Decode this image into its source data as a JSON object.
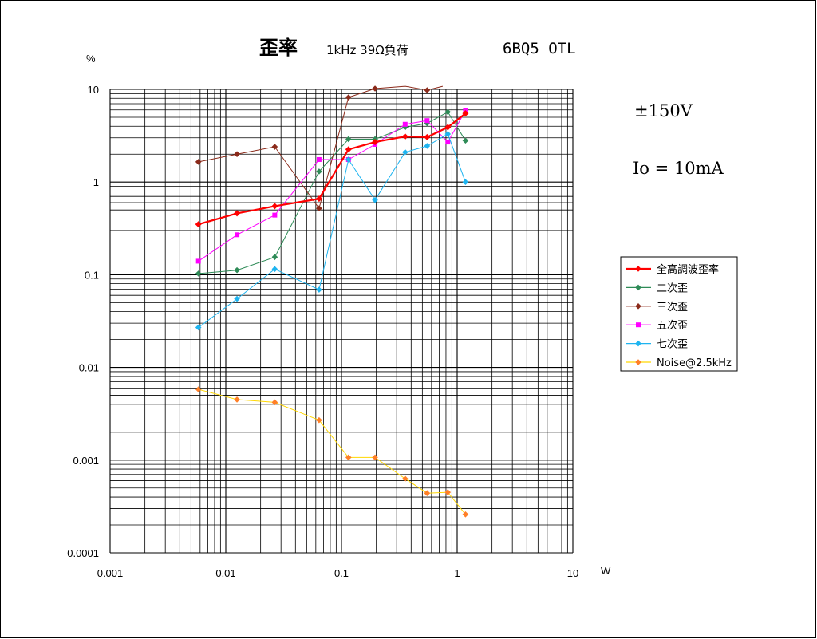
{
  "chart_data": {
    "type": "line",
    "title": "歪率",
    "subtitle": "1kHz 39Ω負荷",
    "model": "6BQ5 OTL",
    "xlabel": "W",
    "ylabel": "%",
    "xscale": "log",
    "yscale": "log",
    "xlim": [
      0.001,
      10
    ],
    "ylim": [
      0.0001,
      10
    ],
    "x_ticks": [
      "0.001",
      "0.01",
      "0.1",
      "1",
      "10"
    ],
    "y_ticks": [
      "10",
      "1",
      "0.1",
      "0.01",
      "0.001",
      "0.0001"
    ],
    "grid": true,
    "legend_position": "right",
    "annotations": [
      "±150V",
      "Io = 10mA"
    ],
    "series": [
      {
        "name": "全高調波歪率",
        "color": "#ff0000",
        "marker": "diamond",
        "width": 2.2,
        "x": [
          0.0058,
          0.0125,
          0.0265,
          0.064,
          0.115,
          0.195,
          0.355,
          0.55,
          0.83,
          1.18
        ],
        "y": [
          0.35,
          0.46,
          0.55,
          0.66,
          2.25,
          2.7,
          3.1,
          3.05,
          3.9,
          5.5
        ]
      },
      {
        "name": "二次歪",
        "color": "#2e8b57",
        "marker": "diamond",
        "width": 1,
        "x": [
          0.0058,
          0.0125,
          0.0265,
          0.064,
          0.115,
          0.195,
          0.355,
          0.55,
          0.83,
          1.18
        ],
        "y": [
          0.103,
          0.112,
          0.155,
          1.3,
          2.9,
          2.9,
          3.9,
          4.3,
          5.7,
          2.8
        ]
      },
      {
        "name": "三次歪",
        "color": "#8b2a1a",
        "marker": "diamond",
        "width": 1,
        "x": [
          0.0058,
          0.0125,
          0.0265,
          0.064,
          0.115,
          0.195,
          0.355,
          0.55,
          0.75
        ],
        "y": [
          1.65,
          2.0,
          2.4,
          0.52,
          8.2,
          10.2,
          10.8,
          9.8,
          10.8
        ],
        "markers": [
          true,
          true,
          true,
          true,
          true,
          true,
          false,
          true,
          false
        ]
      },
      {
        "name": "五次歪",
        "color": "#ff00ff",
        "marker": "square",
        "width": 1,
        "x": [
          0.0058,
          0.0125,
          0.0265,
          0.064,
          0.115,
          0.195,
          0.355,
          0.55,
          0.83,
          1.18
        ],
        "y": [
          0.14,
          0.27,
          0.44,
          1.75,
          1.75,
          2.55,
          4.2,
          4.6,
          2.7,
          5.9
        ]
      },
      {
        "name": "七次歪",
        "color": "#1eb4f0",
        "marker": "diamond",
        "width": 1,
        "x": [
          0.0058,
          0.0125,
          0.0265,
          0.064,
          0.115,
          0.195,
          0.355,
          0.55,
          0.83,
          1.18
        ],
        "y": [
          0.027,
          0.055,
          0.115,
          0.069,
          1.75,
          0.64,
          2.1,
          2.45,
          3.3,
          1.0
        ]
      },
      {
        "name": "Noise@2.5kHz",
        "color": "#ffd700",
        "marker_color": "#ff7f27",
        "marker": "diamond",
        "width": 1,
        "x": [
          0.0058,
          0.0125,
          0.0265,
          0.064,
          0.115,
          0.195,
          0.355,
          0.55,
          0.83,
          1.18
        ],
        "y": [
          0.0058,
          0.0045,
          0.0042,
          0.0027,
          0.00107,
          0.00107,
          0.00063,
          0.00044,
          0.00045,
          0.00026
        ]
      }
    ]
  }
}
